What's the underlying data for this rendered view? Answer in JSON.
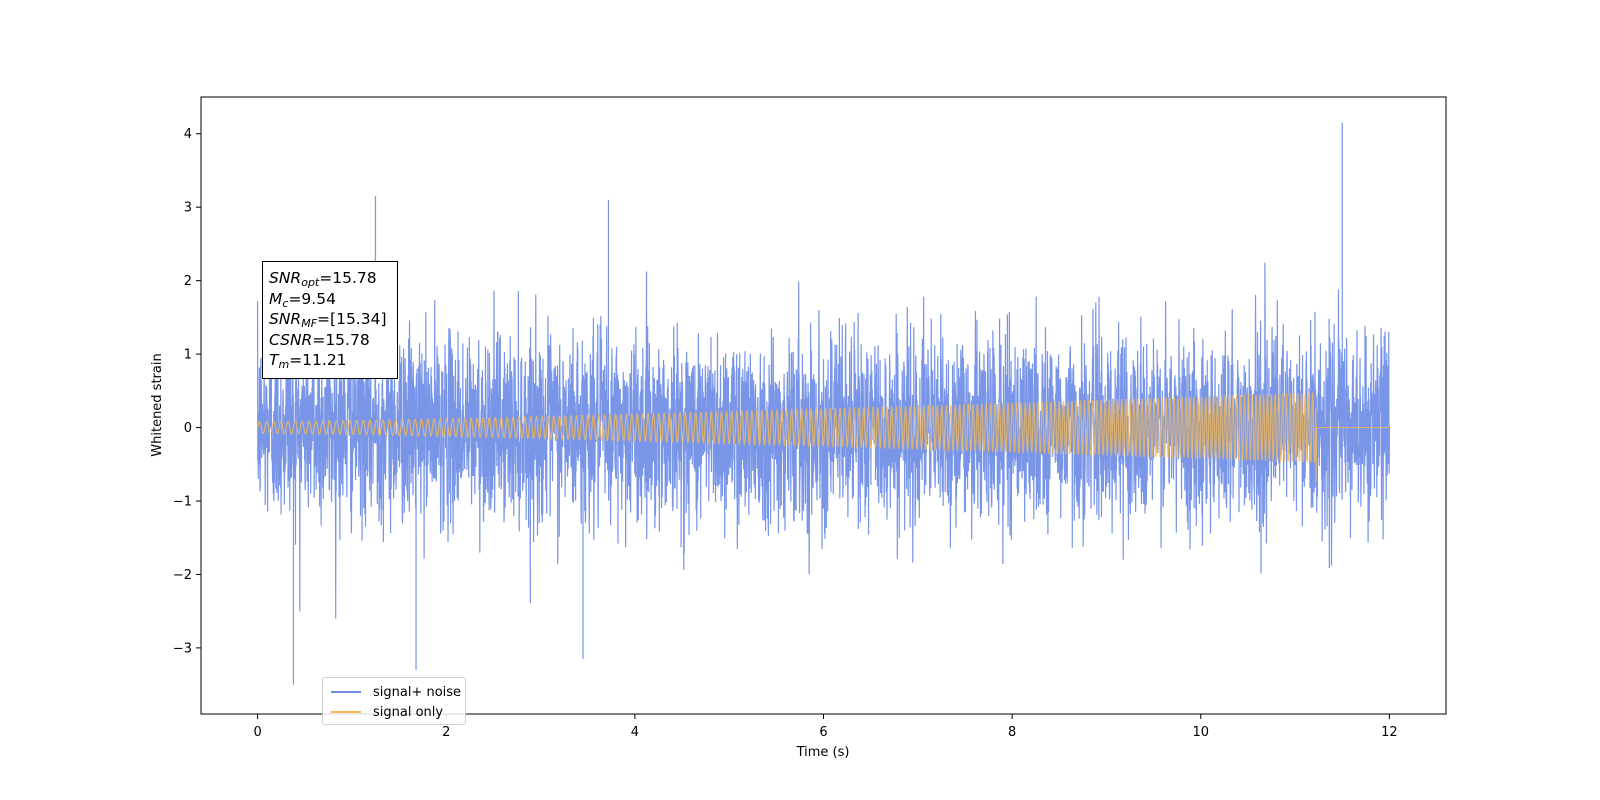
{
  "chart_data": {
    "type": "line",
    "title": "",
    "xlabel": "Time (s)",
    "ylabel": "Whitened strain",
    "xlim": [
      -0.6,
      12.6
    ],
    "ylim": [
      -3.9,
      4.5
    ],
    "x_ticks": [
      0,
      2,
      4,
      6,
      8,
      10,
      12
    ],
    "y_ticks": [
      -3,
      -2,
      -1,
      0,
      1,
      2,
      3,
      4
    ],
    "grid": false,
    "legend_placement": "lower-left",
    "series": [
      {
        "name": "signal+ noise",
        "color": "#6d8ce6",
        "description_range": [
          0,
          12
        ],
        "notable_points": [
          {
            "x": 0.38,
            "y": -3.5
          },
          {
            "x": 1.25,
            "y": 3.15
          },
          {
            "x": 1.68,
            "y": -3.3
          },
          {
            "x": 3.72,
            "y": 3.1
          },
          {
            "x": 3.45,
            "y": -3.15
          },
          {
            "x": 11.5,
            "y": 4.15
          },
          {
            "x": 11.2,
            "y": 0.3
          }
        ],
        "amplitude_sigma": 0.62
      },
      {
        "name": "signal only",
        "color": "#f5b955",
        "x_start": 0,
        "x_end": 11.22,
        "x_flat_end": 12,
        "envelope_start": 0.08,
        "envelope_end": 0.48,
        "end_spike": -0.75
      }
    ],
    "annotations": [
      {
        "main": "SNR",
        "sub": "opt",
        "value": "=15.78"
      },
      {
        "main": "M",
        "sub": "c",
        "value": "=9.54"
      },
      {
        "main": "SNR",
        "sub": "MF",
        "value": "=[15.34]"
      },
      {
        "main": "CSNR",
        "sub": "",
        "value": "=15.78"
      },
      {
        "main": "T",
        "sub": "m",
        "value": "=11.21"
      }
    ]
  }
}
